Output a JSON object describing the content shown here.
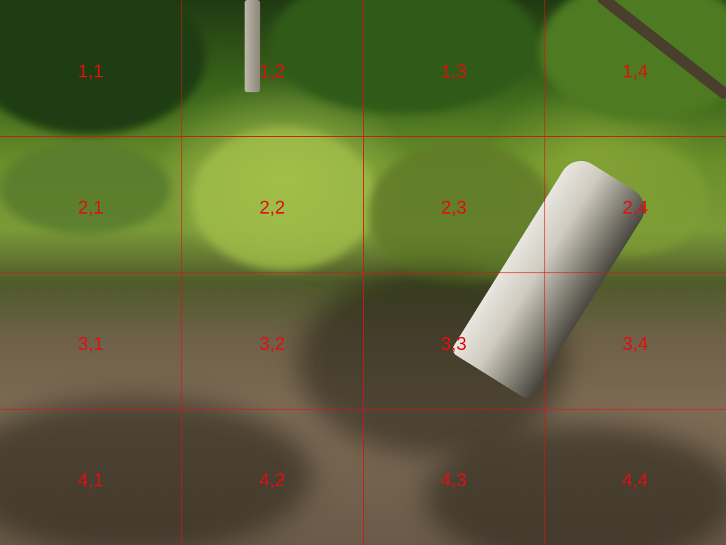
{
  "grid": {
    "line_color": "#e01010",
    "label_color": "#e01010",
    "rows": 4,
    "cols": 4,
    "labels": [
      [
        "1,1",
        "1,2",
        "1,3",
        "1,4"
      ],
      [
        "2,1",
        "2,2",
        "2,3",
        "2,4"
      ],
      [
        "3,1",
        "3,2",
        "3,3",
        "3,4"
      ],
      [
        "4,1",
        "4,2",
        "4,3",
        "4,4"
      ]
    ]
  }
}
